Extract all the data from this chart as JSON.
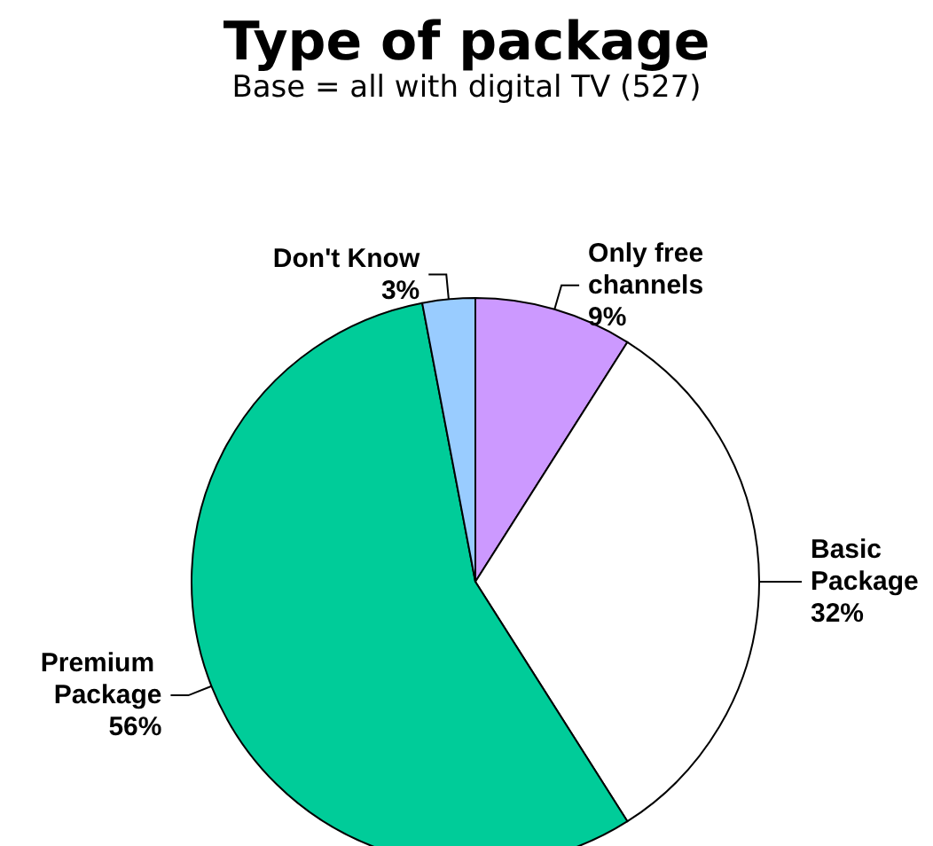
{
  "chart_data": {
    "type": "pie",
    "title": "Type of package",
    "subtitle": "Base = all with digital TV (527)",
    "categories": [
      "Only free channels",
      "Basic Package",
      "Premium Package",
      "Don't Know"
    ],
    "values": [
      9,
      32,
      56,
      3
    ],
    "colors": [
      "#cc99ff",
      "#ffffff",
      "#00cc99",
      "#99ccff"
    ],
    "value_labels": [
      "9%",
      "32%",
      "56%",
      "3%"
    ],
    "legend": false
  }
}
